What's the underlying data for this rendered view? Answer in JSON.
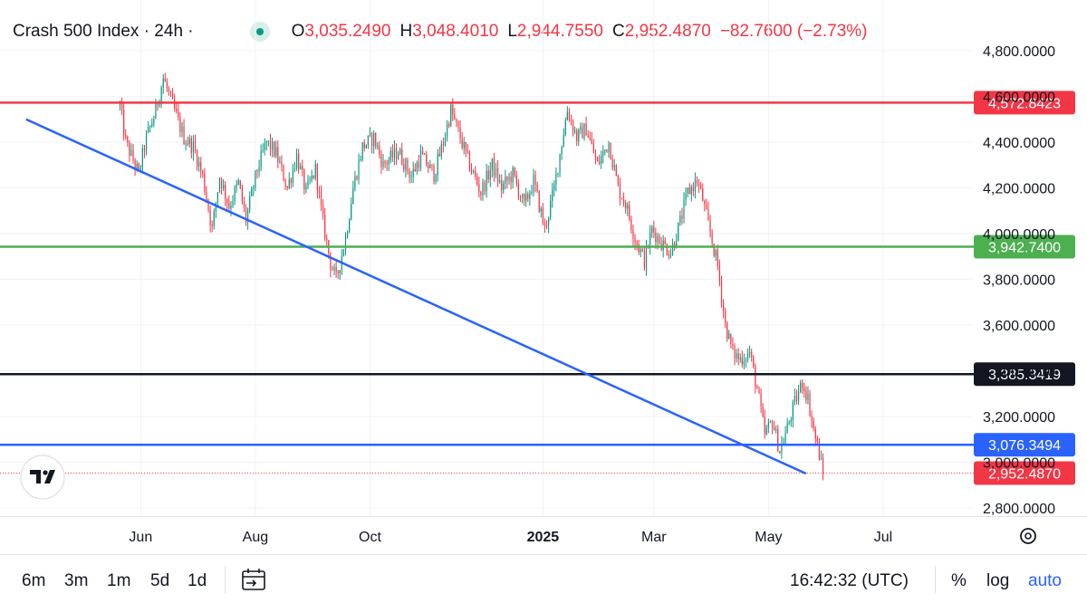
{
  "header": {
    "title": "Crash 500 Index · 24h ·",
    "open_label": "O",
    "open_value": "3,035.2490",
    "high_label": "H",
    "high_value": "3,048.4010",
    "low_label": "L",
    "low_value": "2,944.7550",
    "close_label": "C",
    "close_value": "2,952.4870",
    "change": "−82.7600 (−2.73%)"
  },
  "footer": {
    "ranges": [
      "6m",
      "3m",
      "1m",
      "5d",
      "1d"
    ],
    "time": "16:42:32 (UTC)",
    "percent_label": "%",
    "log_label": "log",
    "auto_label": "auto"
  },
  "chart_data": {
    "type": "candlestick",
    "title": "Crash 500 Index · 24h ·",
    "ylim": [
      2700,
      4850
    ],
    "y_ticks": [
      "4,800.0000",
      "4,600.0000",
      "4,400.0000",
      "4,200.0000",
      "4,000.0000",
      "3,800.0000",
      "3,600.0000",
      "3,400.0000",
      "3,200.0000",
      "3,000.0000",
      "2,800.0000"
    ],
    "x_ticks": [
      "Jun",
      "Aug",
      "Oct",
      "2025",
      "Mar",
      "May",
      "Jul"
    ],
    "last_price": 2952.487,
    "horizontal_lines": [
      {
        "value": 4572.8423,
        "label": "4,572.8423",
        "color": "#f23645"
      },
      {
        "value": 3942.74,
        "label": "3,942.7400",
        "color": "#4caf50"
      },
      {
        "value": 3385.3419,
        "label": "3,385.3419",
        "color": "#131722"
      },
      {
        "value": 3076.3494,
        "label": "3,076.3494",
        "color": "#2962ff"
      },
      {
        "value": 2952.487,
        "label": "2,952.4870",
        "color": "#f23645",
        "dotted": true
      }
    ],
    "trendline": {
      "from": {
        "date": "2024-04-01",
        "value": 4500
      },
      "to": {
        "date": "2025-05-21",
        "value": 2950
      },
      "color": "#2962ff"
    },
    "path_key_points": [
      {
        "date": "2024-05-21",
        "value": 4560
      },
      {
        "date": "2024-05-24",
        "value": 4400
      },
      {
        "date": "2024-05-31",
        "value": 4260
      },
      {
        "date": "2024-06-04",
        "value": 4420
      },
      {
        "date": "2024-06-08",
        "value": 4510
      },
      {
        "date": "2024-06-13",
        "value": 4680
      },
      {
        "date": "2024-06-18",
        "value": 4560
      },
      {
        "date": "2024-06-24",
        "value": 4420
      },
      {
        "date": "2024-06-29",
        "value": 4380
      },
      {
        "date": "2024-07-04",
        "value": 4250
      },
      {
        "date": "2024-07-09",
        "value": 4020
      },
      {
        "date": "2024-07-13",
        "value": 4250
      },
      {
        "date": "2024-07-18",
        "value": 4120
      },
      {
        "date": "2024-07-23",
        "value": 4220
      },
      {
        "date": "2024-07-27",
        "value": 4060
      },
      {
        "date": "2024-08-02",
        "value": 4280
      },
      {
        "date": "2024-08-07",
        "value": 4400
      },
      {
        "date": "2024-08-12",
        "value": 4350
      },
      {
        "date": "2024-08-18",
        "value": 4200
      },
      {
        "date": "2024-08-23",
        "value": 4340
      },
      {
        "date": "2024-08-28",
        "value": 4180
      },
      {
        "date": "2024-09-02",
        "value": 4280
      },
      {
        "date": "2024-09-06",
        "value": 4050
      },
      {
        "date": "2024-09-10",
        "value": 3870
      },
      {
        "date": "2024-09-13",
        "value": 3800
      },
      {
        "date": "2024-09-18",
        "value": 3980
      },
      {
        "date": "2024-09-22",
        "value": 4200
      },
      {
        "date": "2024-09-27",
        "value": 4380
      },
      {
        "date": "2024-10-03",
        "value": 4420
      },
      {
        "date": "2024-10-08",
        "value": 4300
      },
      {
        "date": "2024-10-16",
        "value": 4360
      },
      {
        "date": "2024-10-23",
        "value": 4250
      },
      {
        "date": "2024-10-28",
        "value": 4340
      },
      {
        "date": "2024-11-04",
        "value": 4260
      },
      {
        "date": "2024-11-09",
        "value": 4400
      },
      {
        "date": "2024-11-13",
        "value": 4540
      },
      {
        "date": "2024-11-18",
        "value": 4420
      },
      {
        "date": "2024-11-23",
        "value": 4300
      },
      {
        "date": "2024-11-29",
        "value": 4180
      },
      {
        "date": "2024-12-05",
        "value": 4300
      },
      {
        "date": "2024-12-10",
        "value": 4200
      },
      {
        "date": "2024-12-16",
        "value": 4260
      },
      {
        "date": "2024-12-22",
        "value": 4120
      },
      {
        "date": "2024-12-27",
        "value": 4230
      },
      {
        "date": "2025-01-02",
        "value": 4020
      },
      {
        "date": "2025-01-07",
        "value": 4200
      },
      {
        "date": "2025-01-11",
        "value": 4400
      },
      {
        "date": "2025-01-14",
        "value": 4540
      },
      {
        "date": "2025-01-19",
        "value": 4420
      },
      {
        "date": "2025-01-24",
        "value": 4460
      },
      {
        "date": "2025-01-30",
        "value": 4300
      },
      {
        "date": "2025-02-05",
        "value": 4400
      },
      {
        "date": "2025-02-10",
        "value": 4200
      },
      {
        "date": "2025-02-14",
        "value": 4130
      },
      {
        "date": "2025-02-19",
        "value": 3980
      },
      {
        "date": "2025-02-24",
        "value": 3880
      },
      {
        "date": "2025-02-28",
        "value": 4020
      },
      {
        "date": "2025-03-05",
        "value": 3960
      },
      {
        "date": "2025-03-10",
        "value": 3920
      },
      {
        "date": "2025-03-15",
        "value": 4050
      },
      {
        "date": "2025-03-19",
        "value": 4180
      },
      {
        "date": "2025-03-24",
        "value": 4230
      },
      {
        "date": "2025-03-27",
        "value": 4150
      },
      {
        "date": "2025-03-31",
        "value": 4000
      },
      {
        "date": "2025-04-04",
        "value": 3860
      },
      {
        "date": "2025-04-08",
        "value": 3600
      },
      {
        "date": "2025-04-12",
        "value": 3480
      },
      {
        "date": "2025-04-16",
        "value": 3450
      },
      {
        "date": "2025-04-21",
        "value": 3480
      },
      {
        "date": "2025-04-25",
        "value": 3320
      },
      {
        "date": "2025-04-29",
        "value": 3120
      },
      {
        "date": "2025-05-03",
        "value": 3180
      },
      {
        "date": "2025-05-07",
        "value": 3050
      },
      {
        "date": "2025-05-11",
        "value": 3150
      },
      {
        "date": "2025-05-15",
        "value": 3260
      },
      {
        "date": "2025-05-19",
        "value": 3350
      },
      {
        "date": "2025-05-22",
        "value": 3280
      },
      {
        "date": "2025-05-25",
        "value": 3140
      },
      {
        "date": "2025-05-28",
        "value": 3035
      },
      {
        "date": "2025-05-30",
        "value": 2952
      }
    ]
  }
}
